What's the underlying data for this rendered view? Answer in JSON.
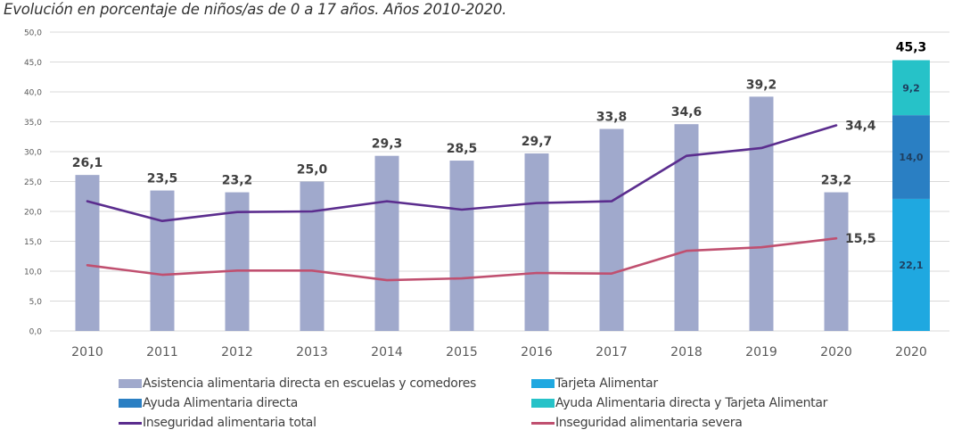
{
  "chart_data": {
    "type": "bar",
    "title": "Evolución en porcentaje de niños/as de 0 a 17 años. Años 2010-2020.",
    "xlabel": "",
    "ylabel": "",
    "ylim": [
      0,
      50
    ],
    "yticks": [
      "0,0",
      "5,0",
      "10,0",
      "15,0",
      "20,0",
      "25,0",
      "30,0",
      "35,0",
      "40,0",
      "45,0",
      "50,0"
    ],
    "grid": true,
    "legend_position": "bottom",
    "categories": [
      "2010",
      "2011",
      "2012",
      "2013",
      "2014",
      "2015",
      "2016",
      "2017",
      "2018",
      "2019",
      "2020",
      "2020"
    ],
    "series": [
      {
        "name": "Asistencia alimentaria directa en escuelas y comedores",
        "kind": "bar",
        "color": "#a0a9cc",
        "values": [
          26.1,
          23.5,
          23.2,
          25.0,
          29.3,
          28.5,
          29.7,
          33.8,
          34.6,
          39.2,
          23.2,
          null
        ],
        "labels": [
          "26,1",
          "23,5",
          "23,2",
          "25,0",
          "29,3",
          "28,5",
          "29,7",
          "33,8",
          "34,6",
          "39,2",
          "23,2",
          ""
        ]
      },
      {
        "name": "Tarjeta Alimentar",
        "kind": "stacked-bar",
        "color": "#1fa8e0",
        "values": [
          null,
          null,
          null,
          null,
          null,
          null,
          null,
          null,
          null,
          null,
          null,
          22.1
        ],
        "labels": [
          "",
          "",
          "",
          "",
          "",
          "",
          "",
          "",
          "",
          "",
          "",
          "22,1"
        ]
      },
      {
        "name": "Ayuda Alimentaria directa",
        "kind": "stacked-bar",
        "color": "#2a7fc3",
        "values": [
          null,
          null,
          null,
          null,
          null,
          null,
          null,
          null,
          null,
          null,
          null,
          14.0
        ],
        "labels": [
          "",
          "",
          "",
          "",
          "",
          "",
          "",
          "",
          "",
          "",
          "",
          "14,0"
        ]
      },
      {
        "name": "Ayuda Alimentaria directa y Tarjeta Alimentar",
        "kind": "stacked-bar",
        "color": "#26c2c8",
        "values": [
          null,
          null,
          null,
          null,
          null,
          null,
          null,
          null,
          null,
          null,
          null,
          9.2
        ],
        "labels": [
          "",
          "",
          "",
          "",
          "",
          "",
          "",
          "",
          "",
          "",
          "",
          "9,2"
        ]
      },
      {
        "name": "Inseguridad alimentaria total",
        "kind": "line",
        "color": "#5b2d8e",
        "values": [
          21.7,
          18.4,
          19.9,
          20.0,
          21.7,
          20.3,
          21.4,
          21.7,
          29.3,
          30.6,
          34.4,
          null
        ],
        "end_label": "34,4"
      },
      {
        "name": "Inseguridad alimentaria severa",
        "kind": "line",
        "color": "#c05070",
        "values": [
          11.0,
          9.4,
          10.1,
          10.1,
          8.5,
          8.8,
          9.7,
          9.6,
          13.4,
          14.0,
          15.5,
          null
        ],
        "end_label": "15,5"
      }
    ],
    "stack_total_label": "45,3",
    "stack_total": 45.3
  },
  "legend": [
    {
      "label": "Asistencia alimentaria directa en escuelas y comedores",
      "type": "box",
      "color": "#a0a9cc"
    },
    {
      "label": "Tarjeta Alimentar",
      "type": "box",
      "color": "#1fa8e0"
    },
    {
      "label": "Ayuda Alimentaria directa",
      "type": "box",
      "color": "#2a7fc3"
    },
    {
      "label": "Ayuda Alimentaria directa y Tarjeta Alimentar",
      "type": "box",
      "color": "#26c2c8"
    },
    {
      "label": "Inseguridad alimentaria total",
      "type": "line",
      "color": "#5b2d8e"
    },
    {
      "label": "Inseguridad alimentaria severa",
      "type": "line",
      "color": "#c05070"
    }
  ],
  "colors": {
    "grid": "#d9d9d9",
    "tick_text": "#595959",
    "label_text": "#404040",
    "total_label": "#000000",
    "stack_label": "#1f3f60"
  }
}
